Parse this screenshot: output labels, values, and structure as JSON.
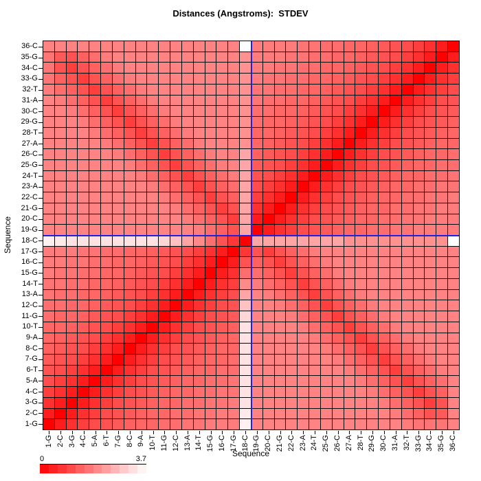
{
  "title": "Distances (Angstroms):  STDEV",
  "axes": {
    "x_label": "Sequence",
    "y_label": "Sequence"
  },
  "legend": {
    "min_label": "0",
    "max_label": "3.7",
    "steps": 12,
    "color_low": "#FF0000",
    "color_high": "#FFFFFF"
  },
  "crosshair": {
    "color": "#2020E0",
    "position_index": 18,
    "between_labels": "18-C / 19-G"
  },
  "chart_data": {
    "type": "heatmap",
    "title": "Distances (Angstroms):  STDEV",
    "xlabel": "Sequence",
    "ylabel": "Sequence",
    "statistic": "STDEV",
    "units": "Angstroms",
    "value_range": [
      0,
      3.7
    ],
    "grid": true,
    "categories": [
      "1-G",
      "2-C",
      "3-G",
      "4-C",
      "5-A",
      "6-T",
      "7-G",
      "8-C",
      "9-A",
      "10-T",
      "11-G",
      "12-C",
      "13-A",
      "14-T",
      "15-G",
      "16-C",
      "17-G",
      "18-C",
      "19-G",
      "20-C",
      "21-G",
      "22-C",
      "23-A",
      "24-T",
      "25-G",
      "26-C",
      "27-A",
      "28-T",
      "29-G",
      "30-C",
      "31-A",
      "32-T",
      "33-G",
      "34-C",
      "35-G",
      "36-C"
    ],
    "row_order_note": "rows listed top-to-bottom: 36-C down to 1-G; columns left-to-right: 1-G to 36-C",
    "matrix_rows_top_to_bottom": [
      [
        1.9,
        1.9,
        1.9,
        1.9,
        1.9,
        1.9,
        1.9,
        1.9,
        1.9,
        1.9,
        1.9,
        1.9,
        1.9,
        1.9,
        1.9,
        1.9,
        1.9,
        3.7,
        1.8,
        1.8,
        1.8,
        1.8,
        1.7,
        1.7,
        1.6,
        1.6,
        1.5,
        1.5,
        1.4,
        1.3,
        1.2,
        1.1,
        0.9,
        0.7,
        0.4,
        0.0
      ],
      [
        1.7,
        1.3,
        1.2,
        1.4,
        1.6,
        1.8,
        1.9,
        1.9,
        1.9,
        1.9,
        1.9,
        1.9,
        1.9,
        1.9,
        1.9,
        1.9,
        1.9,
        2.1,
        1.8,
        1.8,
        1.8,
        1.7,
        1.7,
        1.6,
        1.6,
        1.5,
        1.5,
        1.4,
        1.3,
        1.2,
        1.1,
        0.9,
        0.7,
        0.4,
        0.0,
        0.4
      ],
      [
        1.7,
        1.2,
        0.9,
        1.2,
        1.4,
        1.6,
        1.8,
        1.9,
        1.9,
        1.9,
        1.9,
        1.9,
        1.9,
        1.9,
        1.9,
        1.9,
        1.9,
        2.1,
        1.8,
        1.8,
        1.7,
        1.7,
        1.6,
        1.6,
        1.5,
        1.5,
        1.4,
        1.3,
        1.2,
        1.1,
        0.9,
        0.7,
        0.4,
        0.0,
        0.4,
        0.7
      ],
      [
        1.7,
        1.4,
        1.2,
        0.9,
        1.2,
        1.4,
        1.6,
        1.8,
        1.9,
        1.9,
        1.9,
        1.9,
        1.9,
        1.9,
        1.9,
        1.9,
        1.9,
        2.1,
        1.8,
        1.7,
        1.7,
        1.6,
        1.6,
        1.5,
        1.5,
        1.4,
        1.3,
        1.2,
        1.1,
        0.9,
        0.7,
        0.4,
        0.0,
        0.4,
        0.7,
        0.9
      ],
      [
        1.8,
        1.6,
        1.4,
        1.2,
        0.9,
        1.2,
        1.4,
        1.6,
        1.8,
        1.9,
        1.9,
        1.9,
        1.9,
        1.9,
        1.9,
        1.9,
        1.9,
        2.1,
        1.7,
        1.7,
        1.6,
        1.6,
        1.5,
        1.5,
        1.4,
        1.3,
        1.2,
        1.1,
        0.9,
        0.7,
        0.4,
        0.0,
        0.4,
        0.7,
        0.9,
        1.1
      ],
      [
        1.9,
        1.8,
        1.6,
        1.4,
        1.2,
        0.9,
        1.2,
        1.4,
        1.6,
        1.8,
        1.9,
        1.9,
        1.9,
        1.9,
        1.9,
        1.9,
        1.9,
        2.1,
        1.7,
        1.6,
        1.6,
        1.5,
        1.5,
        1.4,
        1.3,
        1.2,
        1.1,
        0.9,
        0.7,
        0.4,
        0.0,
        0.4,
        0.7,
        0.9,
        1.1,
        1.2
      ],
      [
        1.9,
        1.9,
        1.8,
        1.6,
        1.4,
        1.2,
        0.9,
        1.2,
        1.4,
        1.6,
        1.8,
        1.9,
        1.9,
        1.9,
        1.9,
        1.9,
        1.9,
        2.1,
        1.6,
        1.6,
        1.5,
        1.5,
        1.4,
        1.3,
        1.2,
        1.1,
        0.9,
        0.7,
        0.4,
        0.0,
        0.4,
        0.7,
        0.9,
        1.1,
        1.2,
        1.3
      ],
      [
        1.9,
        1.9,
        1.9,
        1.8,
        1.6,
        1.4,
        1.2,
        0.9,
        1.2,
        1.4,
        1.6,
        1.8,
        1.9,
        1.9,
        1.9,
        1.9,
        1.9,
        2.1,
        1.6,
        1.5,
        1.5,
        1.4,
        1.3,
        1.2,
        1.1,
        0.9,
        0.7,
        0.4,
        0.0,
        0.4,
        0.7,
        0.9,
        1.1,
        1.2,
        1.3,
        1.4
      ],
      [
        1.9,
        1.9,
        1.9,
        1.9,
        1.8,
        1.6,
        1.4,
        1.2,
        0.9,
        1.2,
        1.4,
        1.6,
        1.8,
        1.9,
        1.9,
        1.9,
        1.9,
        2.1,
        1.5,
        1.5,
        1.4,
        1.3,
        1.2,
        1.1,
        0.9,
        0.7,
        0.4,
        0.0,
        0.4,
        0.7,
        0.9,
        1.1,
        1.2,
        1.3,
        1.4,
        1.5
      ],
      [
        1.9,
        1.9,
        1.9,
        1.9,
        1.9,
        1.8,
        1.6,
        1.4,
        1.2,
        0.9,
        1.2,
        1.4,
        1.6,
        1.8,
        1.9,
        1.9,
        1.9,
        2.1,
        1.5,
        1.4,
        1.3,
        1.2,
        1.1,
        0.9,
        0.7,
        0.4,
        0.0,
        0.4,
        0.7,
        0.9,
        1.1,
        1.2,
        1.3,
        1.4,
        1.5,
        1.5
      ],
      [
        1.9,
        1.9,
        1.9,
        1.9,
        1.9,
        1.9,
        1.8,
        1.6,
        1.4,
        1.2,
        0.9,
        1.2,
        1.4,
        1.6,
        1.8,
        1.9,
        1.9,
        2.4,
        1.4,
        1.3,
        1.2,
        1.1,
        0.9,
        0.7,
        0.4,
        0.0,
        0.4,
        0.7,
        0.9,
        1.1,
        1.2,
        1.3,
        1.4,
        1.5,
        1.5,
        1.6
      ],
      [
        1.9,
        1.9,
        1.9,
        1.9,
        1.9,
        1.9,
        1.9,
        1.8,
        1.6,
        1.4,
        1.2,
        0.9,
        1.2,
        1.4,
        1.6,
        1.8,
        1.9,
        2.4,
        1.3,
        1.2,
        1.1,
        0.9,
        0.7,
        0.4,
        0.0,
        0.4,
        0.7,
        0.9,
        1.1,
        1.2,
        1.3,
        1.4,
        1.5,
        1.5,
        1.6,
        1.6
      ],
      [
        1.9,
        1.9,
        1.9,
        1.9,
        1.9,
        1.9,
        1.9,
        1.9,
        1.8,
        1.6,
        1.4,
        1.2,
        0.9,
        1.2,
        1.4,
        1.6,
        1.8,
        2.4,
        1.2,
        1.1,
        0.9,
        0.7,
        0.4,
        0.0,
        0.4,
        0.7,
        0.9,
        1.1,
        1.2,
        1.3,
        1.4,
        1.5,
        1.5,
        1.6,
        1.6,
        1.7
      ],
      [
        1.9,
        1.9,
        1.9,
        1.9,
        1.9,
        1.9,
        1.9,
        1.9,
        1.9,
        1.8,
        1.6,
        1.4,
        1.2,
        0.9,
        1.2,
        1.4,
        1.6,
        2.4,
        1.1,
        0.9,
        0.7,
        0.4,
        0.0,
        0.4,
        0.7,
        0.9,
        1.1,
        1.2,
        1.3,
        1.4,
        1.5,
        1.5,
        1.6,
        1.6,
        1.7,
        1.7
      ],
      [
        1.9,
        1.9,
        1.9,
        1.9,
        1.9,
        1.9,
        1.9,
        1.9,
        1.9,
        1.9,
        1.8,
        1.6,
        1.4,
        1.2,
        0.9,
        1.2,
        1.4,
        2.4,
        0.9,
        0.7,
        0.4,
        0.0,
        0.4,
        0.7,
        0.9,
        1.1,
        1.2,
        1.3,
        1.4,
        1.5,
        1.5,
        1.6,
        1.6,
        1.7,
        1.7,
        1.8
      ],
      [
        1.9,
        1.9,
        1.9,
        1.9,
        1.9,
        1.9,
        1.9,
        1.9,
        1.9,
        1.9,
        1.9,
        1.8,
        1.6,
        1.4,
        1.2,
        0.9,
        1.2,
        2.4,
        0.7,
        0.4,
        0.0,
        0.4,
        0.7,
        0.9,
        1.1,
        1.2,
        1.3,
        1.4,
        1.5,
        1.5,
        1.6,
        1.6,
        1.7,
        1.7,
        1.8,
        1.8
      ],
      [
        1.9,
        1.9,
        1.9,
        1.9,
        1.9,
        1.9,
        1.9,
        1.9,
        1.9,
        1.9,
        1.9,
        1.9,
        1.8,
        1.6,
        1.4,
        1.2,
        0.9,
        2.4,
        0.4,
        0.0,
        0.4,
        0.7,
        0.9,
        1.1,
        1.2,
        1.3,
        1.4,
        1.5,
        1.5,
        1.6,
        1.6,
        1.7,
        1.7,
        1.8,
        1.8,
        1.8
      ],
      [
        1.9,
        1.9,
        1.9,
        1.9,
        1.9,
        1.9,
        1.9,
        1.9,
        1.9,
        1.9,
        1.9,
        1.9,
        1.9,
        1.8,
        1.6,
        1.4,
        1.2,
        2.4,
        0.0,
        0.4,
        0.7,
        0.9,
        1.1,
        1.2,
        1.3,
        1.4,
        1.5,
        1.5,
        1.6,
        1.6,
        1.7,
        1.7,
        1.8,
        1.8,
        1.8,
        1.8
      ],
      [
        3.5,
        3.4,
        3.3,
        3.3,
        3.3,
        3.3,
        3.3,
        3.3,
        3.3,
        3.3,
        3.1,
        2.8,
        2.4,
        2.0,
        1.6,
        1.2,
        0.8,
        0.0,
        2.4,
        2.4,
        2.4,
        2.4,
        2.4,
        2.4,
        2.4,
        2.4,
        2.1,
        2.1,
        2.1,
        2.1,
        2.1,
        2.1,
        2.1,
        2.1,
        2.1,
        3.7
      ],
      [
        1.8,
        1.8,
        1.8,
        1.7,
        1.7,
        1.6,
        1.6,
        1.5,
        1.5,
        1.4,
        1.3,
        1.2,
        1.1,
        0.9,
        0.7,
        0.4,
        0.0,
        0.8,
        1.2,
        0.9,
        1.2,
        1.4,
        1.6,
        1.8,
        1.9,
        1.9,
        1.9,
        1.9,
        1.9,
        1.9,
        1.9,
        1.9,
        1.9,
        1.9,
        1.9,
        1.9
      ],
      [
        1.8,
        1.8,
        1.7,
        1.7,
        1.6,
        1.6,
        1.5,
        1.5,
        1.4,
        1.3,
        1.2,
        1.1,
        0.9,
        0.7,
        0.4,
        0.0,
        0.4,
        1.2,
        1.4,
        1.2,
        0.9,
        1.2,
        1.4,
        1.6,
        1.8,
        1.9,
        1.9,
        1.9,
        1.9,
        1.9,
        1.9,
        1.9,
        1.9,
        1.9,
        1.9,
        1.9
      ],
      [
        1.8,
        1.7,
        1.7,
        1.6,
        1.6,
        1.5,
        1.5,
        1.4,
        1.3,
        1.2,
        1.1,
        0.9,
        0.7,
        0.4,
        0.0,
        0.4,
        0.7,
        1.6,
        1.6,
        1.4,
        1.2,
        0.9,
        1.2,
        1.4,
        1.6,
        1.8,
        1.9,
        1.9,
        1.9,
        1.9,
        1.9,
        1.9,
        1.9,
        1.9,
        1.9,
        1.9
      ],
      [
        1.7,
        1.7,
        1.6,
        1.6,
        1.5,
        1.5,
        1.4,
        1.3,
        1.2,
        1.1,
        0.9,
        0.7,
        0.4,
        0.0,
        0.4,
        0.7,
        0.9,
        2.0,
        1.8,
        1.6,
        1.4,
        1.2,
        0.9,
        1.2,
        1.4,
        1.6,
        1.8,
        1.9,
        1.9,
        1.9,
        1.9,
        1.9,
        1.9,
        1.9,
        1.9,
        1.9
      ],
      [
        1.7,
        1.6,
        1.6,
        1.5,
        1.5,
        1.4,
        1.3,
        1.2,
        1.1,
        0.9,
        0.7,
        0.4,
        0.0,
        0.4,
        0.7,
        0.9,
        1.1,
        2.4,
        1.9,
        1.8,
        1.6,
        1.4,
        1.2,
        0.9,
        1.2,
        1.4,
        1.6,
        1.8,
        1.9,
        1.9,
        1.9,
        1.9,
        1.9,
        1.9,
        1.9,
        1.9
      ],
      [
        1.6,
        1.6,
        1.5,
        1.5,
        1.4,
        1.3,
        1.2,
        1.1,
        0.9,
        0.7,
        0.4,
        0.0,
        0.4,
        0.7,
        0.9,
        1.1,
        1.2,
        2.8,
        1.9,
        1.9,
        1.8,
        1.6,
        1.4,
        1.2,
        0.9,
        1.2,
        1.4,
        1.6,
        1.8,
        1.9,
        1.9,
        1.9,
        1.9,
        1.9,
        1.9,
        1.9
      ],
      [
        1.6,
        1.5,
        1.5,
        1.4,
        1.3,
        1.2,
        1.1,
        0.9,
        0.7,
        0.4,
        0.0,
        0.4,
        0.7,
        0.9,
        1.1,
        1.2,
        1.3,
        3.1,
        1.9,
        1.9,
        1.9,
        1.8,
        1.6,
        1.4,
        1.2,
        0.9,
        1.2,
        1.4,
        1.6,
        1.8,
        1.9,
        1.9,
        1.9,
        1.9,
        1.9,
        1.9
      ],
      [
        1.5,
        1.5,
        1.4,
        1.3,
        1.2,
        1.1,
        0.9,
        0.7,
        0.4,
        0.0,
        0.4,
        0.7,
        0.9,
        1.1,
        1.2,
        1.3,
        1.4,
        3.3,
        1.9,
        1.9,
        1.9,
        1.9,
        1.8,
        1.6,
        1.4,
        1.2,
        0.9,
        1.2,
        1.4,
        1.6,
        1.8,
        1.9,
        1.9,
        1.9,
        1.9,
        1.9
      ],
      [
        1.5,
        1.4,
        1.3,
        1.2,
        1.1,
        0.9,
        0.7,
        0.4,
        0.0,
        0.4,
        0.7,
        0.9,
        1.1,
        1.2,
        1.3,
        1.4,
        1.5,
        3.3,
        1.9,
        1.9,
        1.9,
        1.9,
        1.9,
        1.8,
        1.6,
        1.4,
        1.2,
        0.9,
        1.2,
        1.4,
        1.6,
        1.8,
        1.9,
        1.9,
        1.9,
        1.9
      ],
      [
        1.4,
        1.3,
        1.2,
        1.1,
        0.9,
        0.7,
        0.4,
        0.0,
        0.4,
        0.7,
        0.9,
        1.1,
        1.2,
        1.3,
        1.4,
        1.5,
        1.5,
        3.3,
        1.9,
        1.9,
        1.9,
        1.9,
        1.9,
        1.9,
        1.8,
        1.6,
        1.4,
        1.2,
        0.9,
        1.2,
        1.4,
        1.6,
        1.8,
        1.9,
        1.9,
        1.9
      ],
      [
        1.3,
        1.2,
        1.1,
        0.9,
        0.7,
        0.4,
        0.0,
        0.4,
        0.7,
        0.9,
        1.1,
        1.2,
        1.3,
        1.4,
        1.5,
        1.5,
        1.6,
        3.3,
        1.9,
        1.9,
        1.9,
        1.9,
        1.9,
        1.9,
        1.9,
        1.8,
        1.6,
        1.4,
        1.2,
        0.9,
        1.2,
        1.4,
        1.6,
        1.8,
        1.9,
        1.9
      ],
      [
        1.2,
        1.1,
        0.9,
        0.7,
        0.4,
        0.0,
        0.4,
        0.7,
        0.9,
        1.1,
        1.2,
        1.3,
        1.4,
        1.5,
        1.5,
        1.6,
        1.6,
        3.3,
        1.9,
        1.9,
        1.9,
        1.9,
        1.9,
        1.9,
        1.9,
        1.9,
        1.8,
        1.6,
        1.4,
        1.2,
        0.9,
        1.2,
        1.4,
        1.6,
        1.8,
        1.9
      ],
      [
        1.1,
        0.9,
        0.7,
        0.4,
        0.0,
        0.4,
        0.7,
        0.9,
        1.1,
        1.2,
        1.3,
        1.4,
        1.5,
        1.5,
        1.6,
        1.6,
        1.7,
        3.3,
        1.9,
        1.9,
        1.9,
        1.9,
        1.9,
        1.9,
        1.9,
        1.9,
        1.9,
        1.8,
        1.6,
        1.4,
        1.2,
        0.9,
        1.2,
        1.4,
        1.6,
        1.9
      ],
      [
        0.9,
        0.7,
        0.4,
        0.0,
        0.4,
        0.7,
        0.9,
        1.1,
        1.2,
        1.3,
        1.4,
        1.5,
        1.5,
        1.6,
        1.6,
        1.7,
        1.7,
        3.3,
        1.9,
        1.9,
        1.9,
        1.9,
        1.9,
        1.9,
        1.9,
        1.9,
        1.9,
        1.9,
        1.8,
        1.6,
        1.4,
        1.2,
        0.9,
        1.2,
        1.4,
        1.9
      ],
      [
        0.7,
        0.4,
        0.0,
        0.4,
        0.7,
        0.9,
        1.1,
        1.2,
        1.3,
        1.4,
        1.5,
        1.5,
        1.6,
        1.6,
        1.7,
        1.7,
        1.8,
        3.3,
        1.9,
        1.9,
        1.9,
        1.9,
        1.9,
        1.9,
        1.9,
        1.9,
        1.9,
        1.9,
        1.9,
        1.8,
        1.6,
        1.4,
        1.2,
        0.9,
        1.2,
        1.9
      ],
      [
        0.4,
        0.0,
        0.4,
        0.7,
        0.9,
        1.1,
        1.2,
        1.3,
        1.4,
        1.5,
        1.5,
        1.6,
        1.6,
        1.7,
        1.7,
        1.8,
        1.8,
        3.4,
        1.9,
        1.9,
        1.9,
        1.9,
        1.9,
        1.9,
        1.9,
        1.9,
        1.9,
        1.9,
        1.9,
        1.9,
        1.8,
        1.6,
        1.4,
        1.2,
        1.3,
        1.9
      ],
      [
        0.0,
        0.4,
        0.7,
        0.9,
        1.1,
        1.2,
        1.3,
        1.4,
        1.5,
        1.5,
        1.6,
        1.6,
        1.7,
        1.7,
        1.8,
        1.8,
        1.8,
        3.5,
        1.9,
        1.9,
        1.9,
        1.9,
        1.9,
        1.9,
        1.9,
        1.9,
        1.9,
        1.9,
        1.9,
        1.9,
        1.9,
        1.8,
        1.7,
        1.7,
        1.7,
        1.9
      ]
    ]
  }
}
